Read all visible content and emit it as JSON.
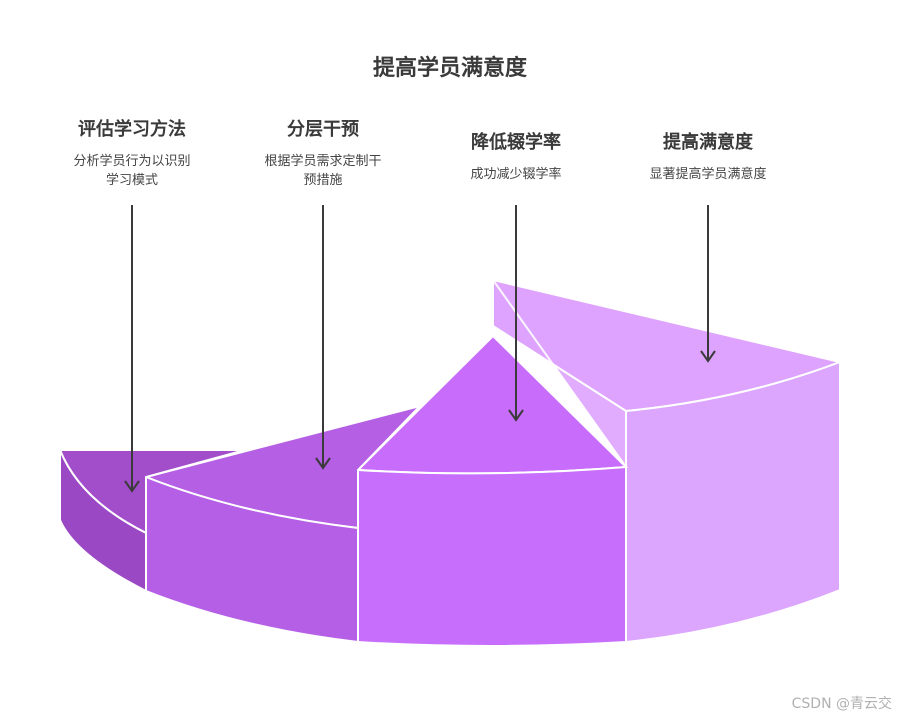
{
  "title": "提高学员满意度",
  "steps": [
    {
      "title": "评估学习方法",
      "desc": "分析学员行为以识别\n学习模式"
    },
    {
      "title": "分层干预",
      "desc": "根据学员需求定制干\n预措施"
    },
    {
      "title": "降低辍学率",
      "desc": "成功减少辍学率"
    },
    {
      "title": "提高满意度",
      "desc": "显著提高学员满意度"
    }
  ],
  "colors": {
    "seg1_top": "#a24ecb",
    "seg1_side": "#9a48c4",
    "seg2_top": "#b55fe4",
    "seg2_side": "#b45fe6",
    "seg3_top": "#c76cfb",
    "seg3_side": "#c76efc",
    "seg4_top": "#dea3fe",
    "seg4_side": "#dca6fe",
    "arrow": "#3a3a3a"
  },
  "watermark": "CSDN @青云交"
}
